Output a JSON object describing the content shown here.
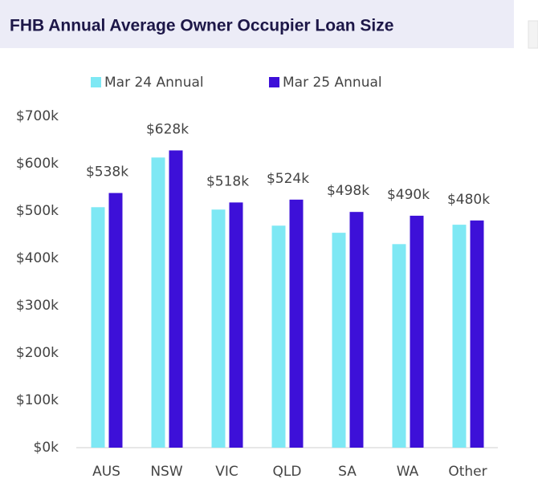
{
  "header": {
    "title": "FHB Annual Average Owner Occupier Loan Size"
  },
  "chart_data": {
    "type": "bar",
    "categories": [
      "AUS",
      "NSW",
      "VIC",
      "QLD",
      "SA",
      "WA",
      "Other"
    ],
    "series": [
      {
        "name": "Mar 24 Annual",
        "color": "#7ee8f4",
        "values": [
          508,
          613,
          503,
          469,
          454,
          430,
          471
        ]
      },
      {
        "name": "Mar 25 Annual",
        "color": "#3d10d8",
        "values": [
          538,
          628,
          518,
          524,
          498,
          490,
          480
        ],
        "value_labels": [
          "$538k",
          "$628k",
          "$518k",
          "$524k",
          "$498k",
          "$490k",
          "$480k"
        ]
      }
    ],
    "ylim": [
      0,
      700
    ],
    "yticks": [
      {
        "value": 0,
        "label": "$0k"
      },
      {
        "value": 100,
        "label": "$100k"
      },
      {
        "value": 200,
        "label": "$200k"
      },
      {
        "value": 300,
        "label": "$300k"
      },
      {
        "value": 400,
        "label": "$400k"
      },
      {
        "value": 500,
        "label": "$500k"
      },
      {
        "value": 600,
        "label": "$600k"
      },
      {
        "value": 700,
        "label": "$700k"
      }
    ],
    "grid": false,
    "legend": "top"
  }
}
